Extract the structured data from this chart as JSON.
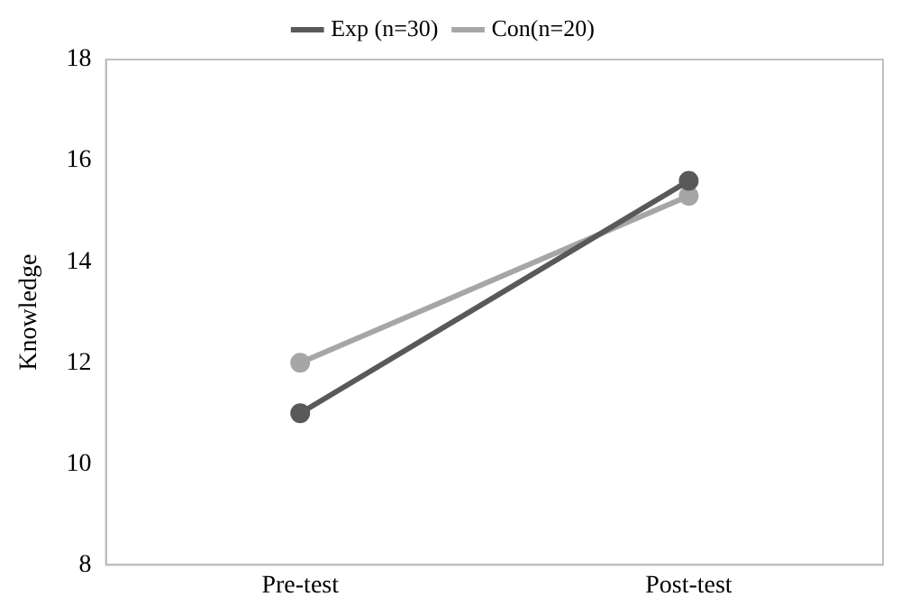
{
  "chart_data": {
    "type": "line",
    "ylabel": "Knowledge",
    "categories": [
      "Pre-test",
      "Post-test"
    ],
    "series": [
      {
        "name": "Exp (n=30)",
        "color": "#595959",
        "values": [
          11.0,
          15.6
        ]
      },
      {
        "name": "Con(n=20)",
        "color": "#a6a6a6",
        "values": [
          12.0,
          15.3
        ]
      }
    ],
    "ylim": [
      8,
      18
    ],
    "yticks": [
      8,
      10,
      12,
      14,
      16,
      18
    ],
    "grid": false,
    "legend": "top",
    "marker": "circle",
    "line_style": "solid"
  }
}
